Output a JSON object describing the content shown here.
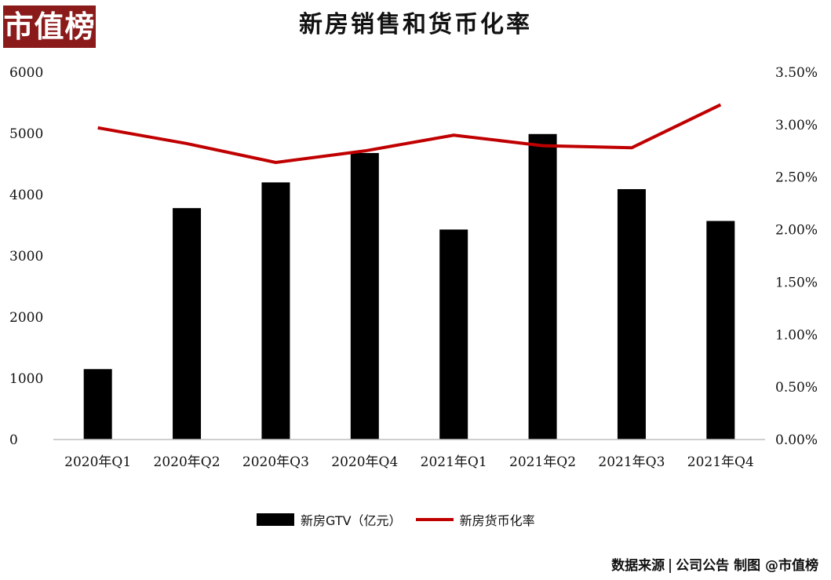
{
  "logo": {
    "text": "市值榜"
  },
  "chart_data": {
    "type": "bar+line",
    "title": "新房销售和货币化率",
    "categories": [
      "2020年Q1",
      "2020年Q2",
      "2020年Q3",
      "2020年Q4",
      "2021年Q1",
      "2021年Q2",
      "2021年Q3",
      "2021年Q4"
    ],
    "series": [
      {
        "name": "新房GTV（亿元）",
        "type": "bar",
        "axis": "left",
        "color": "#000000",
        "values": [
          1150,
          3780,
          4200,
          4680,
          3430,
          4990,
          4090,
          3570
        ]
      },
      {
        "name": "新房货币化率",
        "type": "line",
        "axis": "right",
        "color": "#c00000",
        "values": [
          2.97,
          2.82,
          2.64,
          2.75,
          2.9,
          2.8,
          2.78,
          3.19
        ]
      }
    ],
    "y_left": {
      "ylim": [
        0,
        6000
      ],
      "ticks": [
        "0",
        "1000",
        "2000",
        "3000",
        "4000",
        "5000",
        "6000"
      ]
    },
    "y_right": {
      "ylim": [
        0,
        3.5
      ],
      "ticks": [
        "0.00%",
        "0.50%",
        "1.00%",
        "1.50%",
        "2.00%",
        "2.50%",
        "3.00%",
        "3.50%"
      ]
    },
    "grid": false,
    "legend_position": "bottom"
  },
  "source": {
    "label": "数据来源",
    "text": "公司公告 制图 @市值榜"
  }
}
